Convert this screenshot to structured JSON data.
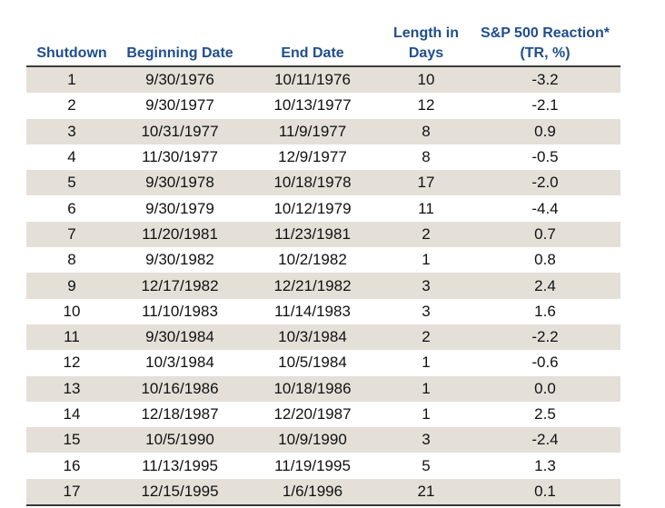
{
  "table": {
    "headers": {
      "shutdown": "Shutdown",
      "beginning": "Beginning Date",
      "end": "End Date",
      "length_line1": "Length in",
      "length_line2": "Days",
      "reaction_line1": "S&P 500 Reaction*",
      "reaction_line2": "(TR, %)"
    },
    "rows": [
      {
        "shutdown": "1",
        "begin": "9/30/1976",
        "end": "10/11/1976",
        "days": "10",
        "reaction": "-3.2"
      },
      {
        "shutdown": "2",
        "begin": "9/30/1977",
        "end": "10/13/1977",
        "days": "12",
        "reaction": "-2.1"
      },
      {
        "shutdown": "3",
        "begin": "10/31/1977",
        "end": "11/9/1977",
        "days": "8",
        "reaction": "0.9"
      },
      {
        "shutdown": "4",
        "begin": "11/30/1977",
        "end": "12/9/1977",
        "days": "8",
        "reaction": "-0.5"
      },
      {
        "shutdown": "5",
        "begin": "9/30/1978",
        "end": "10/18/1978",
        "days": "17",
        "reaction": "-2.0"
      },
      {
        "shutdown": "6",
        "begin": "9/30/1979",
        "end": "10/12/1979",
        "days": "11",
        "reaction": "-4.4"
      },
      {
        "shutdown": "7",
        "begin": "11/20/1981",
        "end": "11/23/1981",
        "days": "2",
        "reaction": "0.7"
      },
      {
        "shutdown": "8",
        "begin": "9/30/1982",
        "end": "10/2/1982",
        "days": "1",
        "reaction": "0.8"
      },
      {
        "shutdown": "9",
        "begin": "12/17/1982",
        "end": "12/21/1982",
        "days": "3",
        "reaction": "2.4"
      },
      {
        "shutdown": "10",
        "begin": "11/10/1983",
        "end": "11/14/1983",
        "days": "3",
        "reaction": "1.6"
      },
      {
        "shutdown": "11",
        "begin": "9/30/1984",
        "end": "10/3/1984",
        "days": "2",
        "reaction": "-2.2"
      },
      {
        "shutdown": "12",
        "begin": "10/3/1984",
        "end": "10/5/1984",
        "days": "1",
        "reaction": "-0.6"
      },
      {
        "shutdown": "13",
        "begin": "10/16/1986",
        "end": "10/18/1986",
        "days": "1",
        "reaction": "0.0"
      },
      {
        "shutdown": "14",
        "begin": "12/18/1987",
        "end": "12/20/1987",
        "days": "1",
        "reaction": "2.5"
      },
      {
        "shutdown": "15",
        "begin": "10/5/1990",
        "end": "10/9/1990",
        "days": "3",
        "reaction": "-2.4"
      },
      {
        "shutdown": "16",
        "begin": "11/13/1995",
        "end": "11/19/1995",
        "days": "5",
        "reaction": "1.3"
      },
      {
        "shutdown": "17",
        "begin": "12/15/1995",
        "end": "1/6/1996",
        "days": "21",
        "reaction": "0.1"
      }
    ]
  }
}
